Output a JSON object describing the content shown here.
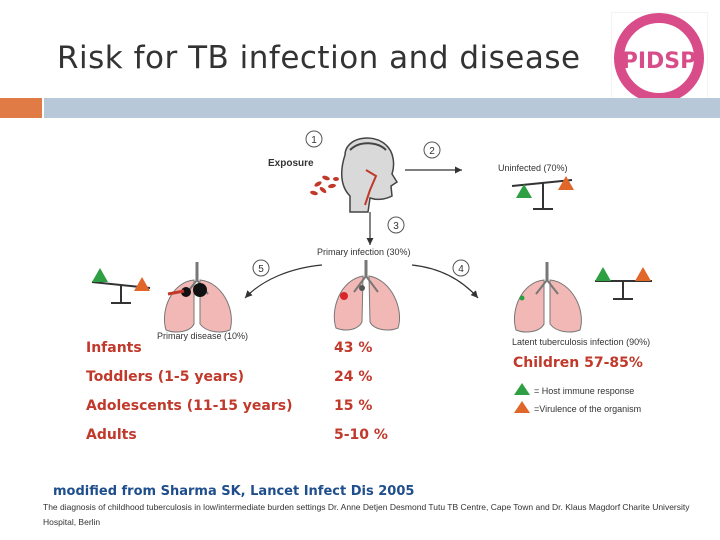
{
  "slide": {
    "title": "Risk for TB infection and disease",
    "logo_text": "PIDSP"
  },
  "diagram": {
    "step_numbers": [
      "1",
      "2",
      "3",
      "4",
      "5"
    ],
    "exposure_label": "Exposure",
    "uninfected_label": "Uninfected (70%)",
    "primary_infection_label": "Primary infection (30%)",
    "primary_disease_label": "Primary disease (10%)",
    "latent_label": "Latent tuberculosis infection (90%)"
  },
  "risk_table": {
    "rows": [
      {
        "label": "Infants",
        "value": "43 %"
      },
      {
        "label": "Toddlers (1-5 years)",
        "value": "24 %"
      },
      {
        "label": "Adolescents (11-15 years)",
        "value": "15 %"
      },
      {
        "label": "Adults",
        "value": "5-10 %"
      }
    ],
    "children_label": "Children 57-85%"
  },
  "legend": {
    "host": "= Host immune response",
    "virulence": "=Virulence of the organism"
  },
  "colors": {
    "accent_orange": "#e07b45",
    "band_blue": "#b7c8d8",
    "host_green": "#2ea043",
    "virulence_orange": "#e0662a",
    "risk_red": "#c0392b"
  },
  "source": {
    "citation": "modified from Sharma SK, Lancet Infect Dis 2005",
    "footnote": "The diagnosis of childhood tuberculosis in low/intermediate burden settings Dr. Anne Detjen Desmond Tutu TB Centre, Cape Town and Dr. Klaus Magdorf Charite University Hospital, Berlin"
  }
}
